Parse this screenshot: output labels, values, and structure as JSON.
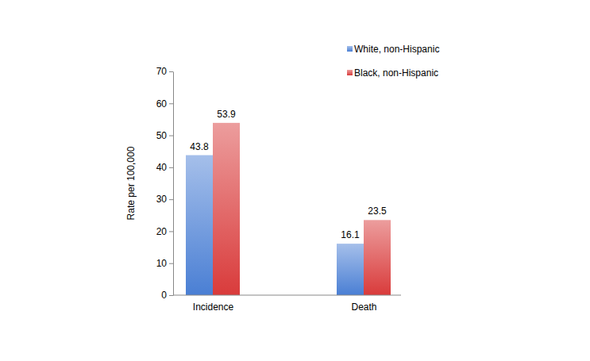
{
  "chart_data": {
    "type": "bar",
    "y_label": "Rate per 100,000",
    "categories": [
      "Incidence",
      "Death"
    ],
    "series": [
      {
        "name": "White, non-Hispanic",
        "color": "#4a7fd4",
        "values": [
          43.8,
          16.1
        ]
      },
      {
        "name": "Black, non-Hispanic",
        "color": "#d93b3b",
        "values": [
          53.9,
          23.5
        ]
      }
    ],
    "ylim": [
      0,
      70
    ],
    "yticks": [
      0,
      10,
      20,
      30,
      40,
      50,
      60,
      70
    ],
    "data_labels": true,
    "grid": false,
    "legend": "upper right"
  }
}
